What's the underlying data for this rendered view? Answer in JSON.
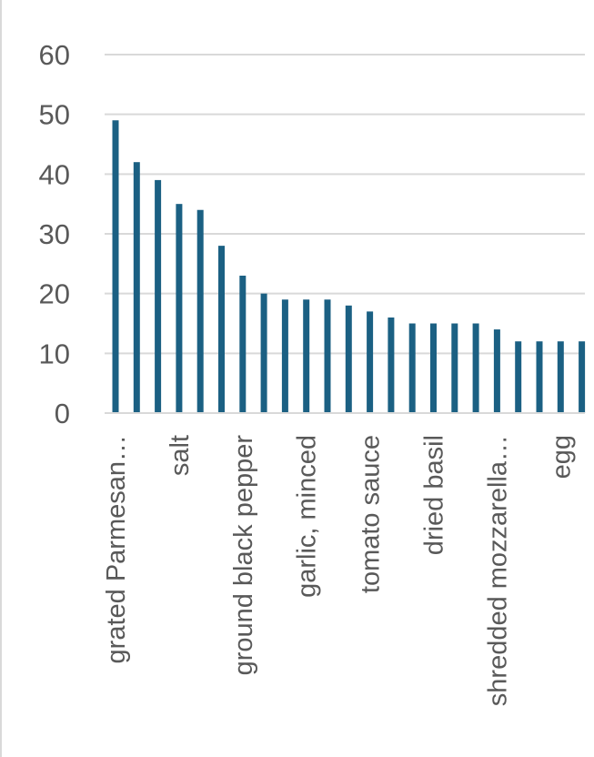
{
  "chart_data": {
    "type": "bar",
    "title": "",
    "xlabel": "",
    "ylabel": "",
    "ylim": [
      0,
      60
    ],
    "yticks": [
      "0",
      "10",
      "20",
      "30",
      "40",
      "50",
      "60"
    ],
    "grid": true,
    "legend": "none",
    "bar_color": "#1b6083",
    "gridline_color": "#d9d9d9",
    "categories": [
      "grated Parmesan…",
      "",
      "",
      "salt",
      "",
      "",
      "ground black pepper",
      "",
      "",
      "garlic, minced",
      "",
      "",
      "tomato sauce",
      "",
      "",
      "dried basil",
      "",
      "",
      "shredded mozzarella…",
      "",
      "",
      "egg",
      ""
    ],
    "values": [
      49,
      42,
      39,
      35,
      34,
      28,
      23,
      20,
      19,
      19,
      19,
      18,
      17,
      16,
      15,
      15,
      15,
      15,
      14,
      12,
      12,
      12,
      12
    ]
  }
}
